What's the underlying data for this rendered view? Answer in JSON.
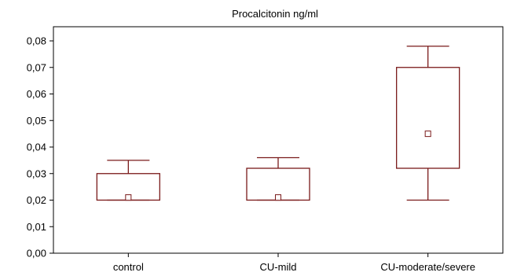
{
  "chart_data": {
    "type": "box",
    "title": "Procalcitonin  ng/ml",
    "xlabel": "",
    "ylabel": "",
    "ylim": [
      0,
      0.08
    ],
    "y_ticks": [
      0,
      0.01,
      0.02,
      0.03,
      0.04,
      0.05,
      0.06,
      0.07,
      0.08
    ],
    "y_tick_labels": [
      "0,00",
      "0,01",
      "0,02",
      "0,03",
      "0,04",
      "0,05",
      "0,06",
      "0,07",
      "0,08"
    ],
    "grid": false,
    "color": "#7a1a1a",
    "categories": [
      "control",
      "CU-mild",
      "CU-moderate/severe"
    ],
    "series": [
      {
        "category": "control",
        "whisker_low": 0.02,
        "q1": 0.02,
        "median": 0.021,
        "q3": 0.03,
        "whisker_high": 0.035
      },
      {
        "category": "CU-mild",
        "whisker_low": 0.02,
        "q1": 0.02,
        "median": 0.021,
        "q3": 0.032,
        "whisker_high": 0.036
      },
      {
        "category": "CU-moderate/severe",
        "whisker_low": 0.02,
        "q1": 0.032,
        "median": 0.045,
        "q3": 0.07,
        "whisker_high": 0.078
      }
    ]
  }
}
